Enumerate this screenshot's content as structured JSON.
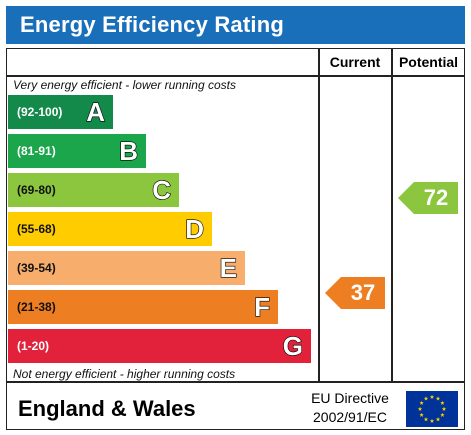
{
  "header": {
    "title": "Energy Efficiency Rating"
  },
  "columns": {
    "current": "Current",
    "potential": "Potential"
  },
  "notes": {
    "top": "Very energy efficient - lower running costs",
    "bottom": "Not energy efficient - higher running costs"
  },
  "bands": [
    {
      "range": "(92-100)",
      "letter": "A",
      "color": "#138a4a"
    },
    {
      "range": "(81-91)",
      "letter": "B",
      "color": "#1ba64b"
    },
    {
      "range": "(69-80)",
      "letter": "C",
      "color": "#8cc63f"
    },
    {
      "range": "(55-68)",
      "letter": "D",
      "color": "#ffcc00"
    },
    {
      "range": "(39-54)",
      "letter": "E",
      "color": "#f7ad6b"
    },
    {
      "range": "(21-38)",
      "letter": "F",
      "color": "#ee7e22"
    },
    {
      "range": "(1-20)",
      "letter": "G",
      "color": "#e2223b"
    }
  ],
  "ratings": {
    "current": {
      "value": "37",
      "band": "F",
      "color": "#ee7e22"
    },
    "potential": {
      "value": "72",
      "band": "C",
      "color": "#8cc63f"
    }
  },
  "footer": {
    "country": "England & Wales",
    "directive_line1": "EU Directive",
    "directive_line2": "2002/91/EC",
    "flag_icon": "eu-flag-icon",
    "flag_color": "#003399",
    "star_color": "#ffcc00"
  }
}
